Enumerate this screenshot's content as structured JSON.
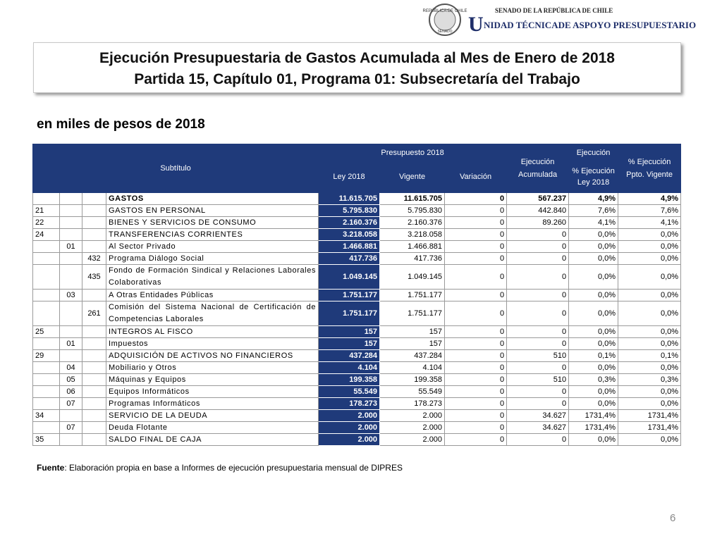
{
  "logo": {
    "seal_top": "REPÚBLICA DE CHILE",
    "seal_bottom": "SENADO",
    "line1": "SENADO DE LA REPÚBLICA DE CHILE",
    "initial": "U",
    "line2": "NIDAD TÉCNICADE ASPOYO PRESUPUESTARIO"
  },
  "header": {
    "title_line1": "Ejecución Presupuestaria de Gastos Acumulada al Mes de Enero de 2018",
    "title_line2": "Partida 15, Capítulo 01, Programa 01: Subsecretaría del Trabajo"
  },
  "subtitle": "en miles de pesos de 2018",
  "table": {
    "headers": {
      "subtitulo": "Subtítulo",
      "presupuesto": "Presupuesto 2018",
      "ley": "Ley 2018",
      "vigente": "Vigente",
      "variacion": "Variación",
      "ejecucion": "Ejecución Acumulada",
      "ejec_group": "Ejecución",
      "pct_ley": "% Ejecución Ley 2018",
      "pct_vigente": "% Ejecución Ppto. Vigente"
    },
    "rows": [
      {
        "denominacion": "GASTOS",
        "ley": "11.615.705",
        "vigente": "11.615.705",
        "variacion": "0",
        "ejecucion": "567.237",
        "pct_ley": "4,9%",
        "pct_vigente": "4,9%"
      },
      {
        "subtitulo": "21",
        "denominacion": "GASTOS EN PERSONAL",
        "ley": "5.795.830",
        "vigente": "5.795.830",
        "variacion": "0",
        "ejecucion": "442.840",
        "pct_ley": "7,6%",
        "pct_vigente": "7,6%"
      },
      {
        "subtitulo": "22",
        "denominacion": "BIENES Y SERVICIOS DE CONSUMO",
        "ley": "2.160.376",
        "vigente": "2.160.376",
        "variacion": "0",
        "ejecucion": "89.260",
        "pct_ley": "4,1%",
        "pct_vigente": "4,1%"
      },
      {
        "subtitulo": "24",
        "denominacion": "TRANSFERENCIAS CORRIENTES",
        "ley": "3.218.058",
        "vigente": "3.218.058",
        "variacion": "0",
        "ejecucion": "0",
        "pct_ley": "0,0%",
        "pct_vigente": "0,0%"
      },
      {
        "item": "01",
        "denominacion": "Al Sector Privado",
        "ley": "1.466.881",
        "vigente": "1.466.881",
        "variacion": "0",
        "ejecucion": "0",
        "pct_ley": "0,0%",
        "pct_vigente": "0,0%"
      },
      {
        "asignacion": "432",
        "denominacion": "Programa Diálogo Social",
        "ley": "417.736",
        "vigente": "417.736",
        "variacion": "0",
        "ejecucion": "0",
        "pct_ley": "0,0%",
        "pct_vigente": "0,0%"
      },
      {
        "asignacion": "435",
        "denominacion": "Fondo de Formación Sindical y Relaciones Laborales Colaborativas",
        "ley": "1.049.145",
        "vigente": "1.049.145",
        "variacion": "0",
        "ejecucion": "0",
        "pct_ley": "0,0%",
        "pct_vigente": "0,0%"
      },
      {
        "item": "03",
        "denominacion": "A Otras Entidades Públicas",
        "ley": "1.751.177",
        "vigente": "1.751.177",
        "variacion": "0",
        "ejecucion": "0",
        "pct_ley": "0,0%",
        "pct_vigente": "0,0%"
      },
      {
        "asignacion": "261",
        "denominacion": "Comisión del Sistema Nacional de Certificación de Competencias Laborales",
        "ley": "1.751.177",
        "vigente": "1.751.177",
        "variacion": "0",
        "ejecucion": "0",
        "pct_ley": "0,0%",
        "pct_vigente": "0,0%"
      },
      {
        "subtitulo": "25",
        "denominacion": "INTEGROS AL FISCO",
        "ley": "157",
        "vigente": "157",
        "variacion": "0",
        "ejecucion": "0",
        "pct_ley": "0,0%",
        "pct_vigente": "0,0%"
      },
      {
        "item": "01",
        "denominacion": "Impuestos",
        "ley": "157",
        "vigente": "157",
        "variacion": "0",
        "ejecucion": "0",
        "pct_ley": "0,0%",
        "pct_vigente": "0,0%"
      },
      {
        "subtitulo": "29",
        "denominacion": "ADQUISICIÓN DE ACTIVOS NO FINANCIEROS",
        "ley": "437.284",
        "vigente": "437.284",
        "variacion": "0",
        "ejecucion": "510",
        "pct_ley": "0,1%",
        "pct_vigente": "0,1%"
      },
      {
        "item": "04",
        "denominacion": "Mobiliario y Otros",
        "ley": "4.104",
        "vigente": "4.104",
        "variacion": "0",
        "ejecucion": "0",
        "pct_ley": "0,0%",
        "pct_vigente": "0,0%"
      },
      {
        "item": "05",
        "denominacion": "Máquinas y Equipos",
        "ley": "199.358",
        "vigente": "199.358",
        "variacion": "0",
        "ejecucion": "510",
        "pct_ley": "0,3%",
        "pct_vigente": "0,3%"
      },
      {
        "item": "06",
        "denominacion": "Equipos Informáticos",
        "ley": "55.549",
        "vigente": "55.549",
        "variacion": "0",
        "ejecucion": "0",
        "pct_ley": "0,0%",
        "pct_vigente": "0,0%"
      },
      {
        "item": "07",
        "denominacion": "Programas Informáticos",
        "ley": "178.273",
        "vigente": "178.273",
        "variacion": "0",
        "ejecucion": "0",
        "pct_ley": "0,0%",
        "pct_vigente": "0,0%"
      },
      {
        "subtitulo": "34",
        "denominacion": "SERVICIO DE LA DEUDA",
        "ley": "2.000",
        "vigente": "2.000",
        "variacion": "0",
        "ejecucion": "34.627",
        "pct_ley": "1731,4%",
        "pct_vigente": "1731,4%"
      },
      {
        "item": "07",
        "denominacion": "Deuda Flotante",
        "ley": "2.000",
        "vigente": "2.000",
        "variacion": "0",
        "ejecucion": "34.627",
        "pct_ley": "1731,4%",
        "pct_vigente": "1731,4%"
      },
      {
        "subtitulo": "35",
        "denominacion": "SALDO FINAL DE CAJA",
        "ley": "2.000",
        "vigente": "2.000",
        "variacion": "0",
        "ejecucion": "0",
        "pct_ley": "0,0%",
        "pct_vigente": "0,0%"
      }
    ]
  },
  "footer": {
    "source_label": "Fuente",
    "source_text": ": Elaboración propia en base  a Informes de ejecución presupuestaria mensual de DIPRES",
    "page_number": "6"
  }
}
